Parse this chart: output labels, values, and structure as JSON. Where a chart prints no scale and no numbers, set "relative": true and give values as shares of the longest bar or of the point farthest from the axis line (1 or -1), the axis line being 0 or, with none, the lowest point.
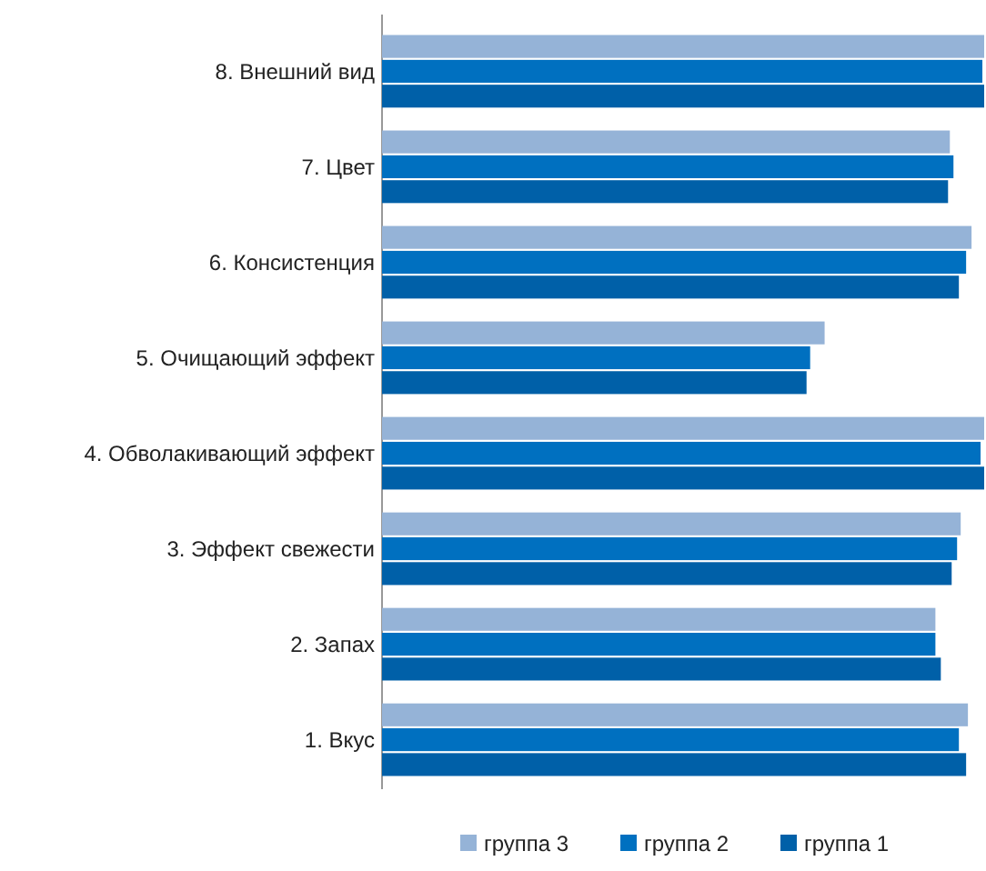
{
  "chart_data": {
    "type": "bar",
    "orientation": "horizontal",
    "relative": true,
    "legend": "bottom",
    "categories": [
      "8. Внешний вид",
      "7. Цвет",
      "6. Консистенция",
      "5. Очищающий эффект",
      "4. Обволакивающий эффект",
      "3. Эффект свежести",
      "2. Запах",
      "1.  Вкус"
    ],
    "series": [
      {
        "name": "группа 3",
        "color": "#95b3d7",
        "values": [
          1,
          0.943,
          0.979,
          0.735,
          1,
          0.961,
          0.919,
          0.973
        ]
      },
      {
        "name": "группа 2",
        "color": "#0070c0",
        "values": [
          0.997,
          0.949,
          0.97,
          0.711,
          0.994,
          0.955,
          0.919,
          0.958
        ]
      },
      {
        "name": "группа 1",
        "color": "#0060a8",
        "values": [
          1,
          0.94,
          0.958,
          0.705,
          1,
          0.946,
          0.928,
          0.97
        ]
      }
    ]
  }
}
